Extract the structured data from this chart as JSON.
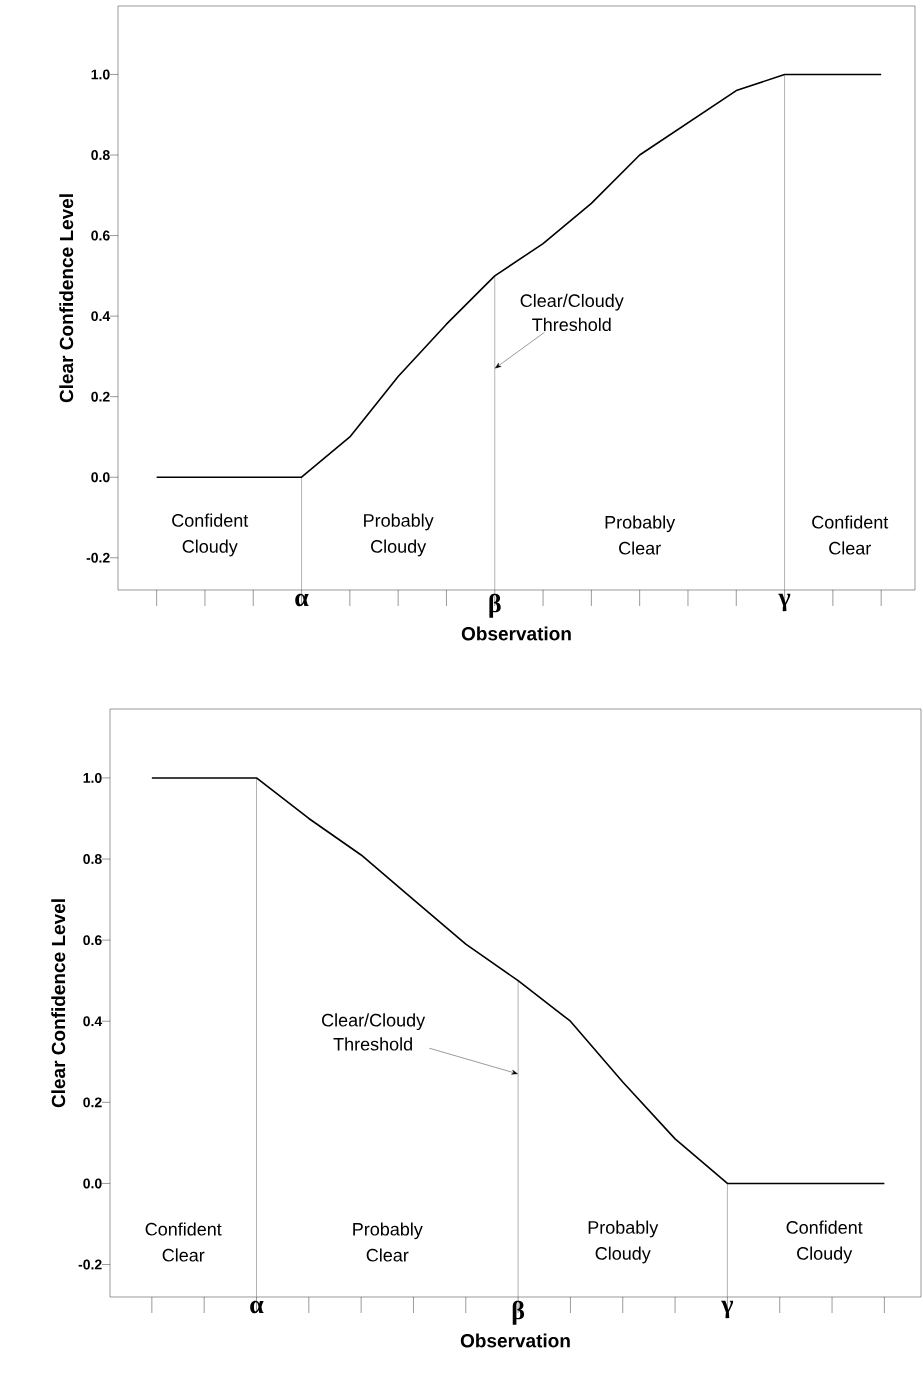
{
  "chart_data": [
    {
      "type": "line",
      "xlabel": "Observation",
      "ylabel": "Clear Confidence Level",
      "color": "#000000",
      "marker": "none",
      "categories": [
        null,
        null,
        null,
        "α",
        null,
        null,
        null,
        "β",
        null,
        null,
        null,
        null,
        null,
        "γ",
        null,
        null
      ],
      "values": [
        0,
        0,
        0,
        0,
        0.1,
        0.25,
        0.38,
        0.5,
        0.58,
        0.68,
        0.8,
        0.88,
        0.96,
        1,
        1,
        1
      ],
      "ylim": [
        -0.28,
        1.17
      ],
      "yticks": [
        {
          "value": -0.2,
          "label": "-0.2"
        },
        {
          "value": 0,
          "label": "0.0"
        },
        {
          "value": 0.2,
          "label": "0.2"
        },
        {
          "value": 0.4,
          "label": "0.4"
        },
        {
          "value": 0.6,
          "label": "0.6"
        },
        {
          "value": 0.8,
          "label": "0.8"
        },
        {
          "value": 1,
          "label": "1.0"
        }
      ],
      "ref_lines": [
        {
          "axis": "x",
          "value": "α",
          "color": "#808080"
        },
        {
          "axis": "x",
          "value": "β",
          "color": "#808080"
        },
        {
          "axis": "x",
          "value": "γ",
          "color": "#808080"
        }
      ],
      "annotations": [
        "Confident Cloudy",
        "Probably Cloudy",
        "Probably Clear",
        "Confident Clear",
        {
          "text": "Clear/Cloudy Threshold",
          "x": "β",
          "y": 0.27
        }
      ]
    },
    {
      "type": "line",
      "xlabel": "Observation",
      "ylabel": "Clear Confidence Level",
      "color": "#000000",
      "marker": "none",
      "categories": [
        null,
        null,
        "α",
        null,
        null,
        null,
        null,
        "β",
        null,
        null,
        null,
        "γ",
        null,
        null,
        null
      ],
      "values": [
        1,
        1,
        1,
        0.9,
        0.81,
        0.7,
        0.59,
        0.5,
        0.4,
        0.25,
        0.11,
        0,
        0,
        0,
        0
      ],
      "ylim": [
        -0.28,
        1.17
      ],
      "yticks": [
        {
          "value": -0.2,
          "label": "-0.2"
        },
        {
          "value": 0,
          "label": "0.0"
        },
        {
          "value": 0.2,
          "label": "0.2"
        },
        {
          "value": 0.4,
          "label": "0.4"
        },
        {
          "value": 0.6,
          "label": "0.6"
        },
        {
          "value": 0.8,
          "label": "0.8"
        },
        {
          "value": 1,
          "label": "1.0"
        }
      ],
      "ref_lines": [
        {
          "axis": "x",
          "value": "α",
          "color": "#808080"
        },
        {
          "axis": "x",
          "value": "β",
          "color": "#808080"
        },
        {
          "axis": "x",
          "value": "γ",
          "color": "#808080"
        }
      ],
      "annotations": [
        "Confident Clear",
        "Probably Clear",
        "Probably Cloudy",
        "Confident Cloudy",
        {
          "text": "Clear/Cloudy Threshold",
          "x": "β",
          "y": 0.27
        }
      ]
    }
  ]
}
